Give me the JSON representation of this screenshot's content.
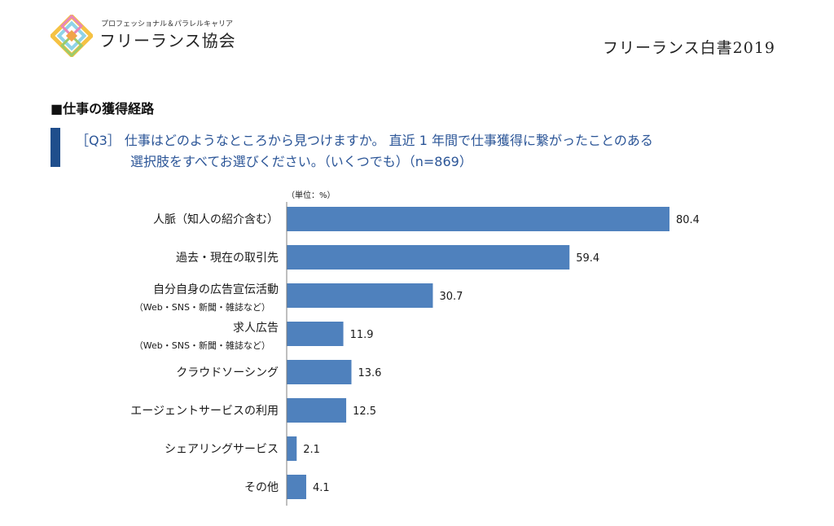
{
  "header": {
    "org_tagline": "プロフェッショナル＆パラレルキャリア",
    "org_name": "フリーランス協会",
    "doc_title": "フリーランス白書2019"
  },
  "section": {
    "heading": "■仕事の獲得経路"
  },
  "question": {
    "line1": "［Q3］ 仕事はどのようなところから見つけますか。 直近 1 年間で仕事獲得に繋がったことのある",
    "line2": "選択肢をすべてお選びください。（いくつでも）（n=869）"
  },
  "colors": {
    "bar": "#4f81bd",
    "accent": "#1f4e8c",
    "question_text": "#2b5597"
  },
  "logo_icon": "diamond-logo-icon",
  "chart_data": {
    "type": "bar",
    "orientation": "horizontal",
    "unit_label": "（単位：%）",
    "categories": [
      {
        "label": "人脈（知人の紹介含む）",
        "sub": ""
      },
      {
        "label": "過去・現在の取引先",
        "sub": ""
      },
      {
        "label": "自分自身の広告宣伝活動",
        "sub": "（Web・SNS・新聞・雑誌など）"
      },
      {
        "label": "求人広告",
        "sub": "（Web・SNS・新聞・雑誌など）"
      },
      {
        "label": "クラウドソーシング",
        "sub": ""
      },
      {
        "label": "エージェントサービスの利用",
        "sub": ""
      },
      {
        "label": "シェアリングサービス",
        "sub": ""
      },
      {
        "label": "その他",
        "sub": ""
      }
    ],
    "values": [
      80.4,
      59.4,
      30.7,
      11.9,
      13.6,
      12.5,
      2.1,
      4.1
    ],
    "value_labels": [
      "80.4",
      "59.4",
      "30.7",
      "11.9",
      "13.6",
      "12.5",
      "2.1",
      "4.1"
    ],
    "xlim": [
      0,
      100
    ],
    "grid": false,
    "legend": "none"
  }
}
